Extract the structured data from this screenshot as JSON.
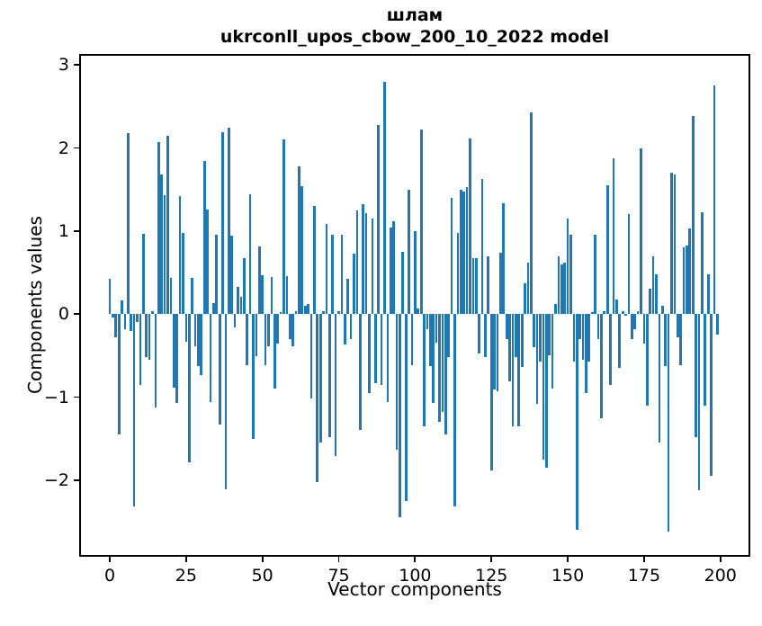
{
  "title": {
    "line1": "шлам",
    "line2": "ukrconll_upos_cbow_200_10_2022 model"
  },
  "chart_data": {
    "type": "bar",
    "title": "шлам\nukrconll_upos_cbow_200_10_2022 model",
    "xlabel": "Vector components",
    "ylabel": "Components values",
    "bar_color": "#1f77b4",
    "grid": false,
    "legend": null,
    "xlim": [
      -9.43,
      209.2
    ],
    "ylim": [
      -2.9,
      3.11
    ],
    "x_ticks": [
      0,
      25,
      50,
      75,
      100,
      125,
      150,
      175,
      200
    ],
    "x_tick_labels": [
      "0",
      "25",
      "50",
      "75",
      "100",
      "125",
      "150",
      "175",
      "200"
    ],
    "y_ticks": [
      3,
      2,
      1,
      0,
      -1,
      -2
    ],
    "y_tick_labels": [
      "3",
      "2",
      "1",
      "0",
      "−1",
      "−2"
    ],
    "x_start": 0,
    "x_step": 1,
    "n_components": 200,
    "values": [
      0.42,
      -0.04,
      -0.28,
      -1.45,
      0.16,
      -0.18,
      2.18,
      -0.2,
      -2.32,
      -0.1,
      -0.85,
      0.97,
      -0.52,
      -0.55,
      0.03,
      -1.12,
      2.07,
      1.68,
      1.43,
      2.15,
      0.43,
      -0.89,
      -1.07,
      1.42,
      0.98,
      -0.33,
      -1.79,
      0.43,
      -0.39,
      -0.63,
      -0.73,
      1.84,
      1.26,
      -1.06,
      0.13,
      0.96,
      -1.33,
      2.19,
      -2.11,
      2.24,
      0.94,
      -0.16,
      0.33,
      0.21,
      0.67,
      -0.61,
      1.44,
      -1.5,
      -0.51,
      0.81,
      0.47,
      -0.62,
      -0.39,
      0.45,
      -0.9,
      -0.36,
      0.02,
      2.1,
      0.46,
      -0.3,
      -0.39,
      0.04,
      1.78,
      1.54,
      0.1,
      0.12,
      -1.02,
      1.3,
      -2.02,
      -1.55,
      0.03,
      1.08,
      -1.48,
      0.95,
      -1.71,
      0.04,
      0.96,
      -0.37,
      0.42,
      -0.3,
      0.73,
      1.25,
      -1.4,
      1.32,
      1.22,
      -0.95,
      1.15,
      -0.83,
      2.28,
      -0.85,
      2.8,
      -1.06,
      1.04,
      1.12,
      -1.63,
      -2.45,
      0.75,
      -2.25,
      1.5,
      -0.62,
      1.0,
      0.07,
      2.22,
      -1.35,
      -0.18,
      -0.63,
      -1.07,
      -0.34,
      -1.3,
      -1.18,
      -1.45,
      -0.52,
      1.4,
      -2.32,
      0.98,
      1.5,
      1.48,
      1.53,
      2.11,
      0.67,
      0.67,
      -0.47,
      1.63,
      -0.52,
      0.69,
      -1.88,
      -0.91,
      -0.93,
      0.74,
      1.33,
      -0.3,
      -0.81,
      -1.35,
      -0.52,
      -1.35,
      -0.64,
      0.37,
      0.62,
      2.43,
      -0.4,
      -1.08,
      -0.57,
      -1.75,
      -1.85,
      -0.5,
      -0.9,
      0.12,
      0.7,
      0.6,
      0.62,
      1.15,
      0.95,
      -0.57,
      -2.6,
      -0.3,
      -0.55,
      -0.95,
      -0.57,
      0.02,
      0.95,
      -0.3,
      -1.25,
      0.03,
      1.55,
      -0.85,
      1.88,
      0.18,
      -0.65,
      0.03,
      -0.02,
      1.2,
      -0.3,
      -0.18,
      0.04,
      2.0,
      -0.35,
      -1.1,
      0.3,
      0.7,
      0.48,
      -1.55,
      0.1,
      -0.63,
      -2.62,
      1.7,
      1.68,
      -0.28,
      -0.62,
      0.8,
      0.83,
      1.03,
      2.38,
      -1.48,
      -2.12,
      1.23,
      -1.1,
      0.48,
      -1.95,
      2.75,
      -0.25
    ]
  }
}
